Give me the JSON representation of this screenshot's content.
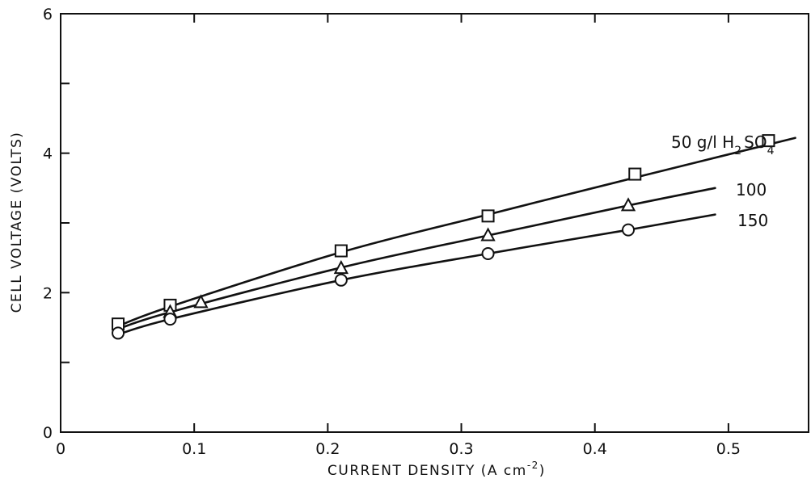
{
  "chart_data": {
    "type": "line",
    "title": "",
    "xlabel": {
      "prefix": "CURRENT DENSITY (A cm",
      "sup": "-2",
      "suffix": ")"
    },
    "ylabel": "CELL VOLTAGE (VOLTS)",
    "xlim": [
      0,
      0.56
    ],
    "ylim": [
      0,
      6
    ],
    "x_ticks": [
      0,
      0.1,
      0.2,
      0.3,
      0.4,
      0.5
    ],
    "x_tick_labels": [
      "0",
      "0.1",
      "0.2",
      "0.3",
      "0.4",
      "0.5"
    ],
    "y_ticks": [
      0,
      1,
      2,
      3,
      4,
      5,
      6
    ],
    "y_tick_labels": [
      "0",
      "",
      "2",
      "",
      "4",
      "",
      "6"
    ],
    "grid": false,
    "legend": "none",
    "series": [
      {
        "label": {
          "text": "50 g/l H",
          "sub1": "2",
          "mid": "SO",
          "sub2": "4"
        },
        "marker": "square",
        "x": [
          0.043,
          0.082,
          0.21,
          0.32,
          0.43,
          0.53
        ],
        "y": [
          1.55,
          1.82,
          2.6,
          3.1,
          3.7,
          4.18
        ],
        "curve_x": [
          0.043,
          0.082,
          0.21,
          0.32,
          0.43,
          0.55
        ],
        "curve_y": [
          1.52,
          1.8,
          2.58,
          3.12,
          3.65,
          4.22
        ]
      },
      {
        "label": {
          "text": "100"
        },
        "marker": "triangle",
        "x": [
          0.082,
          0.105,
          0.21,
          0.32,
          0.425
        ],
        "y": [
          1.72,
          1.86,
          2.35,
          2.82,
          3.25
        ],
        "curve_x": [
          0.043,
          0.082,
          0.21,
          0.32,
          0.425,
          0.49
        ],
        "curve_y": [
          1.48,
          1.72,
          2.36,
          2.82,
          3.25,
          3.5
        ]
      },
      {
        "label": {
          "text": "150"
        },
        "marker": "circle",
        "x": [
          0.043,
          0.082,
          0.21,
          0.32,
          0.425
        ],
        "y": [
          1.42,
          1.62,
          2.18,
          2.56,
          2.9
        ],
        "curve_x": [
          0.043,
          0.082,
          0.21,
          0.32,
          0.425,
          0.49
        ],
        "curve_y": [
          1.4,
          1.62,
          2.18,
          2.56,
          2.9,
          3.12
        ]
      }
    ]
  }
}
